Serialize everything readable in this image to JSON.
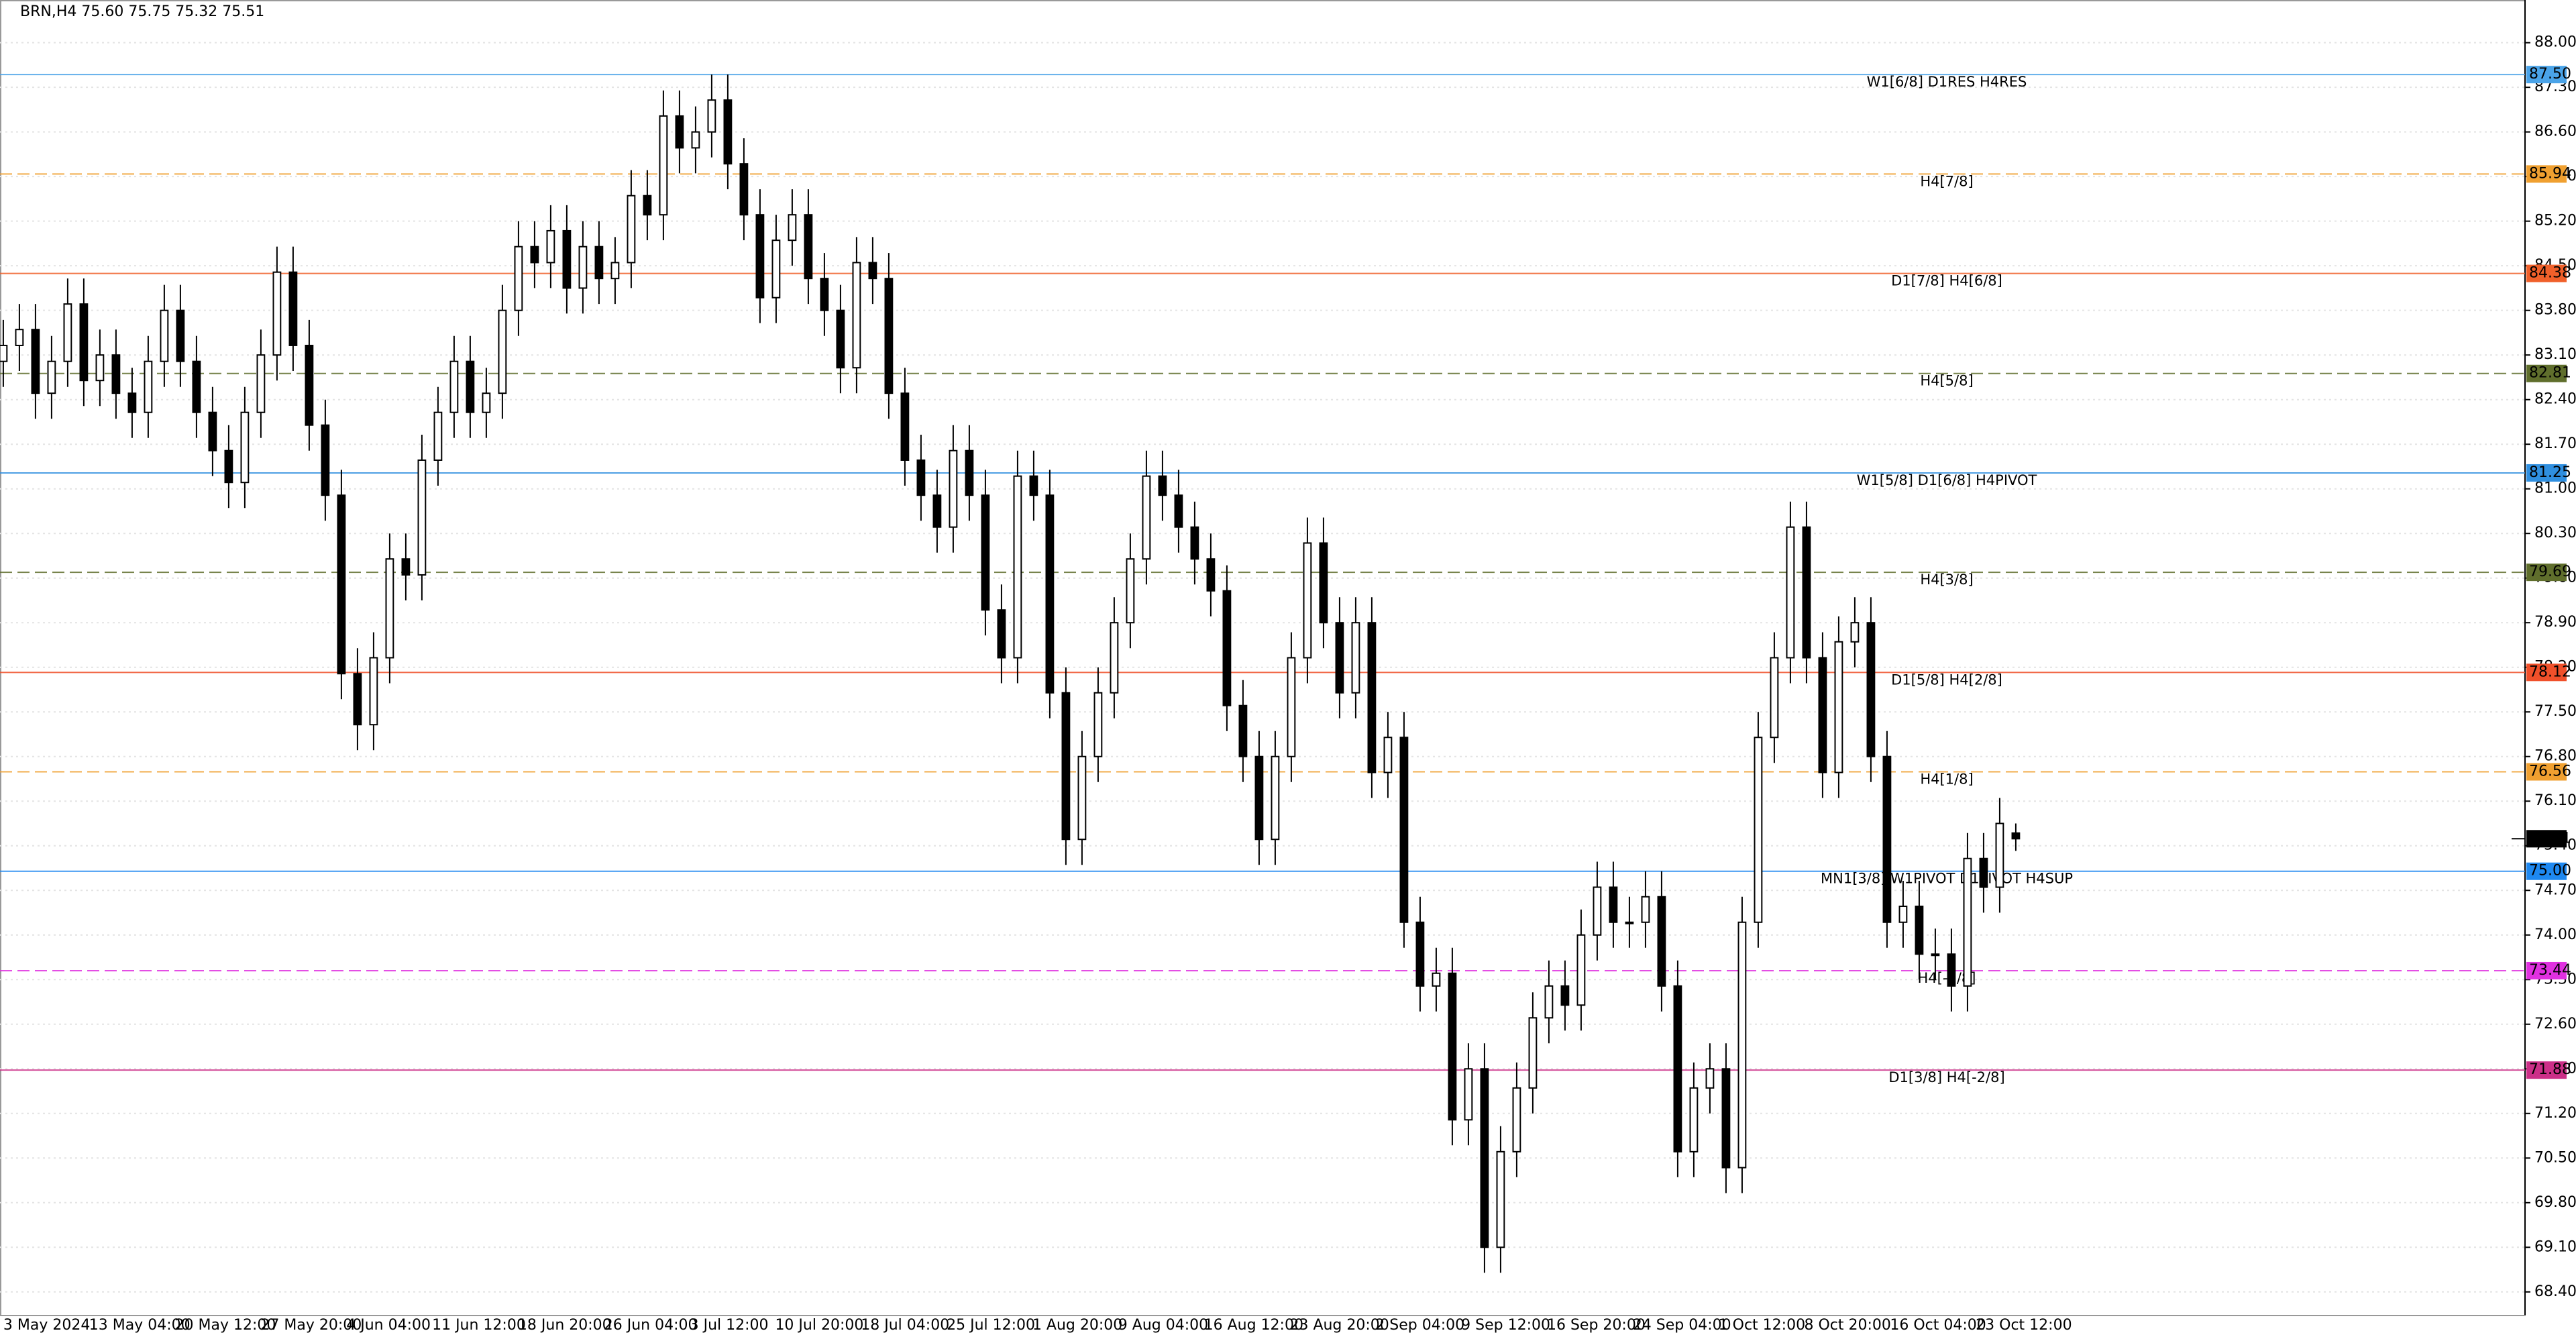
{
  "chart_data": {
    "type": "candlestick",
    "title": "BRN,H4  75.60 75.75 75.32 75.51",
    "ylim": [
      68.04,
      88.67
    ],
    "yticks": [
      {
        "value": 88.0,
        "label": "88.00"
      },
      {
        "value": 87.3,
        "label": "87.30"
      },
      {
        "value": 86.6,
        "label": "86.60"
      },
      {
        "value": 85.9,
        "label": "85.90"
      },
      {
        "value": 85.2,
        "label": "85.20"
      },
      {
        "value": 84.5,
        "label": "84.50"
      },
      {
        "value": 83.8,
        "label": "83.80"
      },
      {
        "value": 83.1,
        "label": "83.10"
      },
      {
        "value": 82.4,
        "label": "82.40"
      },
      {
        "value": 81.7,
        "label": "81.70"
      },
      {
        "value": 81.0,
        "label": "81.00"
      },
      {
        "value": 80.3,
        "label": "80.30"
      },
      {
        "value": 79.6,
        "label": "79.60"
      },
      {
        "value": 78.9,
        "label": "78.90"
      },
      {
        "value": 78.2,
        "label": "78.20"
      },
      {
        "value": 77.5,
        "label": "77.50"
      },
      {
        "value": 76.8,
        "label": "76.80"
      },
      {
        "value": 76.1,
        "label": "76.10"
      },
      {
        "value": 75.4,
        "label": "75.40"
      },
      {
        "value": 74.7,
        "label": "74.70"
      },
      {
        "value": 74.0,
        "label": "74.00"
      },
      {
        "value": 73.3,
        "label": "73.30"
      },
      {
        "value": 72.6,
        "label": "72.60"
      },
      {
        "value": 71.9,
        "label": "71.90"
      },
      {
        "value": 71.2,
        "label": "71.20"
      },
      {
        "value": 70.5,
        "label": "70.50"
      },
      {
        "value": 69.8,
        "label": "69.80"
      },
      {
        "value": 69.1,
        "label": "69.10"
      },
      {
        "value": 68.4,
        "label": "68.40"
      }
    ],
    "grid": true,
    "xlabels": [
      "3 May 2024",
      "13 May 04:00",
      "20 May 12:00",
      "27 May 20:00",
      "4 Jun 04:00",
      "11 Jun 12:00",
      "18 Jun 20:00",
      "26 Jun 04:00",
      "3 Jul 12:00",
      "10 Jul 20:00",
      "18 Jul 04:00",
      "25 Jul 12:00",
      "1 Aug 20:00",
      "9 Aug 04:00",
      "16 Aug 12:00",
      "23 Aug 20:00",
      "2 Sep 04:00",
      "9 Sep 12:00",
      "16 Sep 20:00",
      "24 Sep 04:00",
      "1 Oct 12:00",
      "8 Oct 20:00",
      "16 Oct 04:00",
      "23 Oct 12:00"
    ],
    "levels": [
      {
        "value": 87.5,
        "label": "87.50",
        "text": "W1[6/8] D1RES H4RES",
        "color": "#4aa3e8",
        "dashed": false
      },
      {
        "value": 85.94,
        "label": "85.94",
        "text": "H4[7/8]",
        "color": "#f0a030",
        "dashed": true
      },
      {
        "value": 84.38,
        "label": "84.38",
        "text": "D1[7/8] H4[6/8]",
        "color": "#f0602a",
        "dashed": false
      },
      {
        "value": 82.81,
        "label": "82.81",
        "text": "H4[5/8]",
        "color": "#5f6e2c",
        "dashed": true
      },
      {
        "value": 81.25,
        "label": "81.25",
        "text": "W1[5/8] D1[6/8] H4PIVOT",
        "color": "#2f8fe0",
        "dashed": false
      },
      {
        "value": 79.69,
        "label": "79.69",
        "text": "H4[3/8]",
        "color": "#5f6e2c",
        "dashed": true
      },
      {
        "value": 78.12,
        "label": "78.12",
        "text": "D1[5/8] H4[2/8]",
        "color": "#f0502a",
        "dashed": false
      },
      {
        "value": 76.56,
        "label": "76.56",
        "text": "H4[1/8]",
        "color": "#f0a030",
        "dashed": true
      },
      {
        "value": 75.0,
        "label": "75.00",
        "text": "MN1[3/8] W1PIVOT D1PIVOT H4SUP",
        "color": "#1e88f0",
        "dashed": false
      },
      {
        "value": 73.44,
        "label": "73.44",
        "text": "H4[-1/8]",
        "color": "#e030e0",
        "dashed": true
      },
      {
        "value": 71.88,
        "label": "71.88",
        "text": "D1[3/8] H4[-2/8]",
        "color": "#cc2f88",
        "dashed": false
      }
    ],
    "price": {
      "value": 75.51,
      "label": "75.51"
    },
    "ohlc": [
      [
        83.0,
        83.65,
        82.6,
        83.25
      ],
      [
        83.25,
        83.9,
        82.85,
        83.5
      ],
      [
        83.5,
        83.9,
        82.1,
        82.5
      ],
      [
        82.5,
        83.4,
        82.1,
        83.0
      ],
      [
        83.0,
        84.3,
        82.6,
        83.9
      ],
      [
        83.9,
        84.3,
        82.3,
        82.7
      ],
      [
        82.7,
        83.5,
        82.3,
        83.1
      ],
      [
        83.1,
        83.5,
        82.1,
        82.5
      ],
      [
        82.5,
        82.9,
        81.8,
        82.2
      ],
      [
        82.2,
        83.4,
        81.8,
        83.0
      ],
      [
        83.0,
        84.2,
        82.6,
        83.8
      ],
      [
        83.8,
        84.2,
        82.6,
        83.0
      ],
      [
        83.0,
        83.4,
        81.8,
        82.2
      ],
      [
        82.2,
        82.6,
        81.2,
        81.6
      ],
      [
        81.6,
        82.0,
        80.7,
        81.1
      ],
      [
        81.1,
        82.6,
        80.7,
        82.2
      ],
      [
        82.2,
        83.5,
        81.8,
        83.1
      ],
      [
        83.1,
        84.8,
        82.7,
        84.4
      ],
      [
        84.4,
        84.8,
        82.85,
        83.25
      ],
      [
        83.25,
        83.65,
        81.6,
        82.0
      ],
      [
        82.0,
        82.4,
        80.5,
        80.9
      ],
      [
        80.9,
        81.3,
        77.7,
        78.1
      ],
      [
        78.1,
        78.5,
        76.9,
        77.3
      ],
      [
        77.3,
        78.75,
        76.9,
        78.35
      ],
      [
        78.35,
        80.3,
        77.95,
        79.9
      ],
      [
        79.9,
        80.3,
        79.25,
        79.65
      ],
      [
        79.65,
        81.85,
        79.25,
        81.45
      ],
      [
        81.45,
        82.6,
        81.05,
        82.2
      ],
      [
        82.2,
        83.4,
        81.8,
        83.0
      ],
      [
        83.0,
        83.4,
        81.8,
        82.2
      ],
      [
        82.2,
        82.9,
        81.8,
        82.5
      ],
      [
        82.5,
        84.2,
        82.1,
        83.8
      ],
      [
        83.8,
        85.2,
        83.4,
        84.8
      ],
      [
        84.8,
        85.2,
        84.15,
        84.55
      ],
      [
        84.55,
        85.45,
        84.15,
        85.05
      ],
      [
        85.05,
        85.45,
        83.75,
        84.15
      ],
      [
        84.15,
        85.2,
        83.75,
        84.8
      ],
      [
        84.8,
        85.2,
        83.9,
        84.3
      ],
      [
        84.3,
        84.95,
        83.9,
        84.55
      ],
      [
        84.55,
        86.0,
        84.15,
        85.6
      ],
      [
        85.6,
        86.0,
        84.9,
        85.3
      ],
      [
        85.3,
        87.25,
        84.9,
        86.85
      ],
      [
        86.85,
        87.25,
        85.95,
        86.35
      ],
      [
        86.35,
        87.0,
        85.95,
        86.6
      ],
      [
        86.6,
        87.5,
        86.2,
        87.1
      ],
      [
        87.1,
        87.5,
        85.7,
        86.1
      ],
      [
        86.1,
        86.5,
        84.9,
        85.3
      ],
      [
        85.3,
        85.7,
        83.6,
        84.0
      ],
      [
        84.0,
        85.3,
        83.6,
        84.9
      ],
      [
        84.9,
        85.7,
        84.5,
        85.3
      ],
      [
        85.3,
        85.7,
        83.9,
        84.3
      ],
      [
        84.3,
        84.7,
        83.4,
        83.8
      ],
      [
        83.8,
        84.2,
        82.5,
        82.9
      ],
      [
        82.9,
        84.95,
        82.5,
        84.55
      ],
      [
        84.55,
        84.95,
        83.9,
        84.3
      ],
      [
        84.3,
        84.7,
        82.1,
        82.5
      ],
      [
        82.5,
        82.9,
        81.05,
        81.45
      ],
      [
        81.45,
        81.85,
        80.5,
        80.9
      ],
      [
        80.9,
        81.3,
        80.0,
        80.4
      ],
      [
        80.4,
        82.0,
        80.0,
        81.6
      ],
      [
        81.6,
        82.0,
        80.5,
        80.9
      ],
      [
        80.9,
        81.3,
        78.7,
        79.1
      ],
      [
        79.1,
        79.5,
        77.95,
        78.35
      ],
      [
        78.35,
        81.6,
        77.95,
        81.2
      ],
      [
        81.2,
        81.6,
        80.5,
        80.9
      ],
      [
        80.9,
        81.3,
        77.4,
        77.8
      ],
      [
        77.8,
        78.2,
        75.1,
        75.5
      ],
      [
        75.5,
        77.2,
        75.1,
        76.8
      ],
      [
        76.8,
        78.2,
        76.4,
        77.8
      ],
      [
        77.8,
        79.3,
        77.4,
        78.9
      ],
      [
        78.9,
        80.3,
        78.5,
        79.9
      ],
      [
        79.9,
        81.6,
        79.5,
        81.2
      ],
      [
        81.2,
        81.6,
        80.5,
        80.9
      ],
      [
        80.9,
        81.3,
        80.0,
        80.4
      ],
      [
        80.4,
        80.8,
        79.5,
        79.9
      ],
      [
        79.9,
        80.3,
        79.0,
        79.4
      ],
      [
        79.4,
        79.8,
        77.2,
        77.6
      ],
      [
        77.6,
        78.0,
        76.4,
        76.8
      ],
      [
        76.8,
        77.2,
        75.1,
        75.5
      ],
      [
        75.5,
        77.2,
        75.1,
        76.8
      ],
      [
        76.8,
        78.75,
        76.4,
        78.35
      ],
      [
        78.35,
        80.55,
        77.95,
        80.15
      ],
      [
        80.15,
        80.55,
        78.5,
        78.9
      ],
      [
        78.9,
        79.3,
        77.4,
        77.8
      ],
      [
        77.8,
        79.3,
        77.4,
        78.9
      ],
      [
        78.9,
        79.3,
        76.15,
        76.55
      ],
      [
        76.55,
        77.5,
        76.15,
        77.1
      ],
      [
        77.1,
        77.5,
        73.8,
        74.2
      ],
      [
        74.2,
        74.6,
        72.8,
        73.2
      ],
      [
        73.2,
        73.8,
        72.8,
        73.4
      ],
      [
        73.4,
        73.8,
        70.7,
        71.1
      ],
      [
        71.1,
        72.3,
        70.7,
        71.9
      ],
      [
        71.9,
        72.3,
        68.7,
        69.1
      ],
      [
        69.1,
        71.0,
        68.7,
        70.6
      ],
      [
        70.6,
        72.0,
        70.2,
        71.6
      ],
      [
        71.6,
        73.1,
        71.2,
        72.7
      ],
      [
        72.7,
        73.6,
        72.3,
        73.2
      ],
      [
        73.2,
        73.6,
        72.5,
        72.9
      ],
      [
        72.9,
        74.4,
        72.5,
        74.0
      ],
      [
        74.0,
        75.15,
        73.6,
        74.75
      ],
      [
        74.75,
        75.15,
        73.8,
        74.2
      ],
      [
        74.2,
        74.6,
        73.8,
        74.2
      ],
      [
        74.2,
        75.0,
        73.8,
        74.6
      ],
      [
        74.6,
        75.0,
        72.8,
        73.2
      ],
      [
        73.2,
        73.6,
        70.2,
        70.6
      ],
      [
        70.6,
        72.0,
        70.2,
        71.6
      ],
      [
        71.6,
        72.3,
        71.2,
        71.9
      ],
      [
        71.9,
        72.3,
        69.95,
        70.35
      ],
      [
        70.35,
        74.6,
        69.95,
        74.2
      ],
      [
        74.2,
        77.5,
        73.8,
        77.1
      ],
      [
        77.1,
        78.75,
        76.7,
        78.35
      ],
      [
        78.35,
        80.8,
        77.95,
        80.4
      ],
      [
        80.4,
        80.8,
        77.95,
        78.35
      ],
      [
        78.35,
        78.75,
        76.15,
        76.55
      ],
      [
        76.55,
        79.0,
        76.15,
        78.6
      ],
      [
        78.6,
        79.3,
        78.2,
        78.9
      ],
      [
        78.9,
        79.3,
        76.4,
        76.8
      ],
      [
        76.8,
        77.2,
        73.8,
        74.2
      ],
      [
        74.2,
        74.85,
        73.8,
        74.45
      ],
      [
        74.45,
        74.85,
        73.3,
        73.7
      ],
      [
        73.7,
        74.1,
        73.3,
        73.7
      ],
      [
        73.7,
        74.1,
        72.8,
        73.2
      ],
      [
        73.2,
        75.6,
        72.8,
        75.2
      ],
      [
        75.2,
        75.6,
        74.35,
        74.75
      ],
      [
        74.75,
        76.15,
        74.35,
        75.75
      ],
      [
        75.6,
        75.75,
        75.32,
        75.51
      ]
    ]
  }
}
